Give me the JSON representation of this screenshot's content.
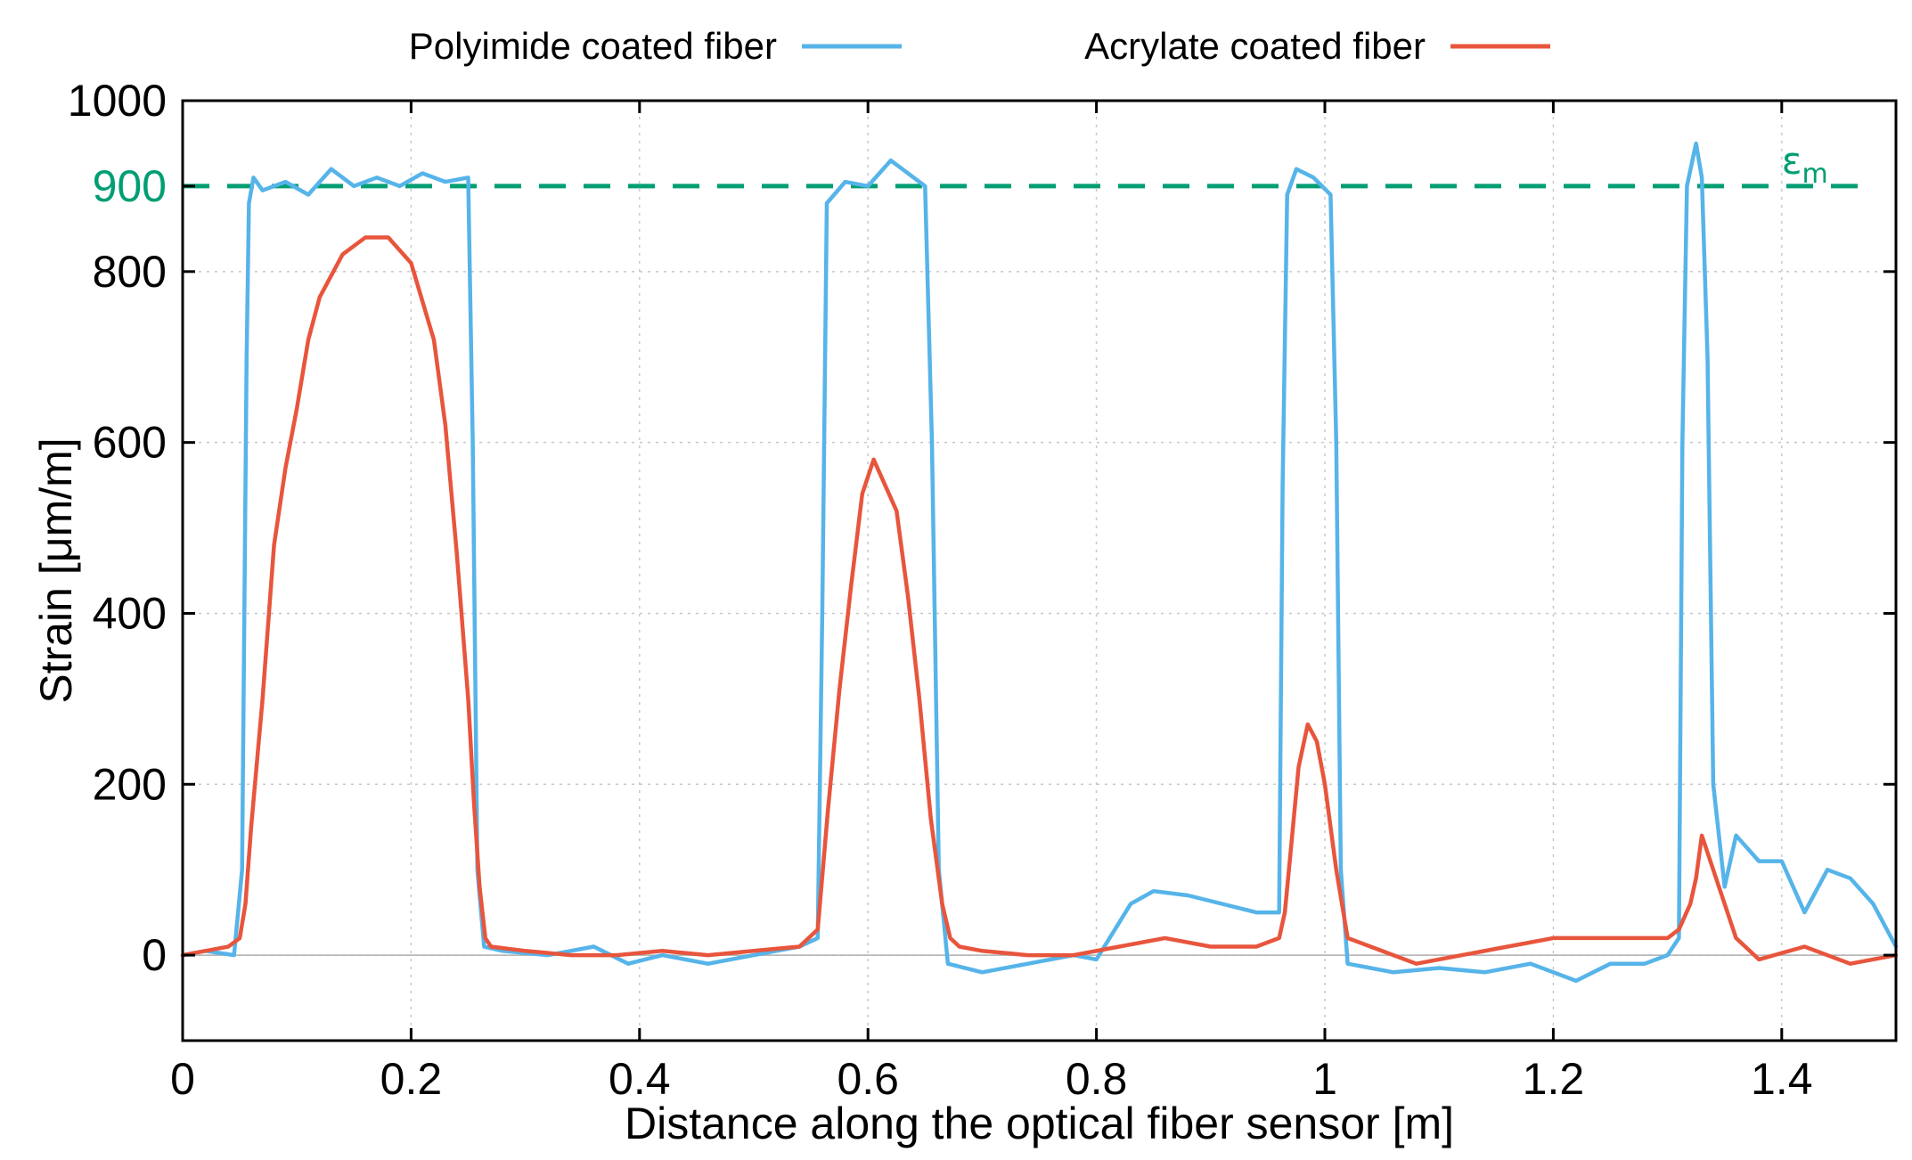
{
  "chart_data": {
    "type": "line",
    "title": "",
    "xlabel": "Distance along the optical fiber sensor [m]",
    "ylabel": "Strain [μm/m]",
    "xlim": [
      0,
      1.5
    ],
    "ylim": [
      -100,
      1000
    ],
    "x_ticks": [
      0,
      0.2,
      0.4,
      0.6,
      0.8,
      1.0,
      1.2,
      1.4
    ],
    "x_tick_labels": [
      "0",
      "0.2",
      "0.4",
      "0.6",
      "0.8",
      "1",
      "1.2",
      "1.4"
    ],
    "y_ticks": [
      0,
      200,
      400,
      600,
      800,
      1000
    ],
    "y_tick_labels": [
      "0",
      "200",
      "400",
      "600",
      "800",
      "1000"
    ],
    "grid": true,
    "legend_position": "top-outside",
    "reference_line": {
      "name": "εm",
      "symbol": "ε",
      "subscript": "m",
      "y": 900,
      "tick_label": "900",
      "color": "#009e73",
      "style": "dashed"
    },
    "series": [
      {
        "name": "Polyimide coated fiber",
        "color": "#56b4e9",
        "x": [
          0.0,
          0.02,
          0.045,
          0.052,
          0.056,
          0.058,
          0.062,
          0.07,
          0.09,
          0.11,
          0.13,
          0.15,
          0.17,
          0.19,
          0.21,
          0.23,
          0.25,
          0.254,
          0.258,
          0.264,
          0.28,
          0.32,
          0.36,
          0.39,
          0.42,
          0.46,
          0.5,
          0.54,
          0.556,
          0.56,
          0.564,
          0.58,
          0.6,
          0.62,
          0.64,
          0.65,
          0.656,
          0.662,
          0.67,
          0.7,
          0.74,
          0.78,
          0.8,
          0.83,
          0.85,
          0.88,
          0.91,
          0.94,
          0.96,
          0.963,
          0.967,
          0.975,
          0.99,
          1.005,
          1.01,
          1.014,
          1.02,
          1.06,
          1.1,
          1.14,
          1.18,
          1.22,
          1.25,
          1.28,
          1.3,
          1.31,
          1.313,
          1.317,
          1.325,
          1.33,
          1.335,
          1.34,
          1.35,
          1.36,
          1.38,
          1.4,
          1.42,
          1.44,
          1.46,
          1.48,
          1.5
        ],
        "values": [
          0,
          5,
          0,
          100,
          700,
          880,
          910,
          895,
          905,
          890,
          920,
          900,
          910,
          900,
          915,
          905,
          910,
          600,
          100,
          10,
          5,
          0,
          10,
          -10,
          0,
          -10,
          0,
          10,
          20,
          400,
          880,
          905,
          900,
          930,
          910,
          900,
          600,
          100,
          -10,
          -20,
          -10,
          0,
          -5,
          60,
          75,
          70,
          60,
          50,
          50,
          550,
          890,
          920,
          910,
          890,
          600,
          100,
          -10,
          -20,
          -15,
          -20,
          -10,
          -30,
          -10,
          -10,
          0,
          20,
          600,
          900,
          950,
          910,
          700,
          200,
          80,
          140,
          110,
          110,
          50,
          100,
          90,
          60,
          10
        ]
      },
      {
        "name": "Acrylate coated fiber",
        "color": "#e8553d",
        "x": [
          0.0,
          0.02,
          0.04,
          0.05,
          0.055,
          0.06,
          0.07,
          0.08,
          0.09,
          0.1,
          0.11,
          0.12,
          0.14,
          0.16,
          0.18,
          0.2,
          0.22,
          0.23,
          0.24,
          0.25,
          0.255,
          0.26,
          0.265,
          0.27,
          0.3,
          0.34,
          0.38,
          0.42,
          0.46,
          0.5,
          0.54,
          0.556,
          0.565,
          0.575,
          0.585,
          0.595,
          0.605,
          0.615,
          0.625,
          0.635,
          0.645,
          0.655,
          0.665,
          0.672,
          0.68,
          0.7,
          0.74,
          0.78,
          0.82,
          0.86,
          0.9,
          0.94,
          0.96,
          0.965,
          0.97,
          0.977,
          0.985,
          0.993,
          1.0,
          1.01,
          1.02,
          1.04,
          1.08,
          1.12,
          1.16,
          1.2,
          1.24,
          1.28,
          1.3,
          1.31,
          1.32,
          1.325,
          1.33,
          1.34,
          1.36,
          1.38,
          1.42,
          1.46,
          1.5
        ],
        "values": [
          0,
          5,
          10,
          20,
          60,
          150,
          300,
          480,
          570,
          640,
          720,
          770,
          820,
          840,
          840,
          810,
          720,
          620,
          470,
          300,
          180,
          80,
          20,
          10,
          5,
          0,
          0,
          5,
          0,
          5,
          10,
          30,
          170,
          310,
          430,
          540,
          580,
          550,
          520,
          420,
          300,
          160,
          60,
          20,
          10,
          5,
          0,
          0,
          10,
          20,
          10,
          10,
          20,
          50,
          120,
          220,
          270,
          250,
          200,
          100,
          20,
          10,
          -10,
          0,
          10,
          20,
          20,
          20,
          20,
          30,
          60,
          90,
          140,
          100,
          20,
          -5,
          10,
          -10,
          0
        ]
      }
    ]
  }
}
